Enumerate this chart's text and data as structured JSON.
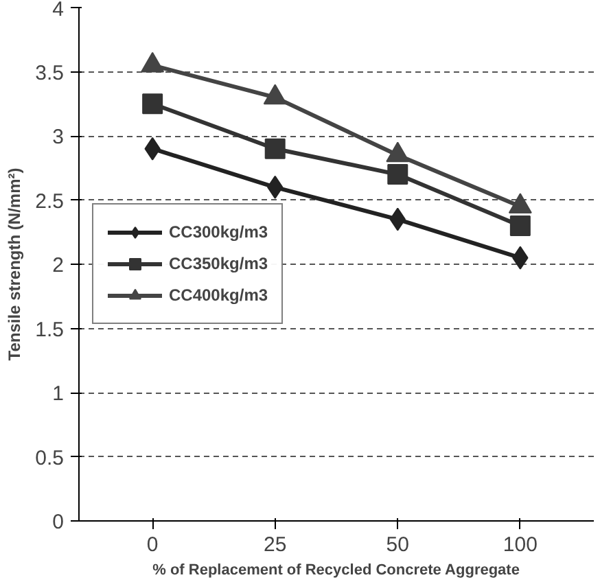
{
  "chart_data": {
    "type": "line",
    "xlabel": "% of Replacement of Recycled Concrete Aggregate",
    "ylabel": "Tensile strength (N/mm²)",
    "categories": [
      "0",
      "25",
      "50",
      "100"
    ],
    "series": [
      {
        "name": "CC300kg/m3",
        "color": "#222222",
        "values": [
          2.9,
          2.6,
          2.35,
          2.05
        ],
        "marker": "diamond"
      },
      {
        "name": "CC350kg/m3",
        "color": "#333333",
        "values": [
          3.25,
          2.9,
          2.7,
          2.3
        ],
        "marker": "square"
      },
      {
        "name": "CC400kg/m3",
        "color": "#444444",
        "values": [
          3.55,
          3.3,
          2.85,
          2.45
        ],
        "marker": "triangle"
      }
    ],
    "ylim": [
      0,
      4
    ],
    "yticks": [
      0,
      0.5,
      1,
      1.5,
      2,
      2.5,
      3,
      3.5,
      4
    ],
    "grid": "y",
    "legend": "left",
    "line_style": "solid"
  }
}
